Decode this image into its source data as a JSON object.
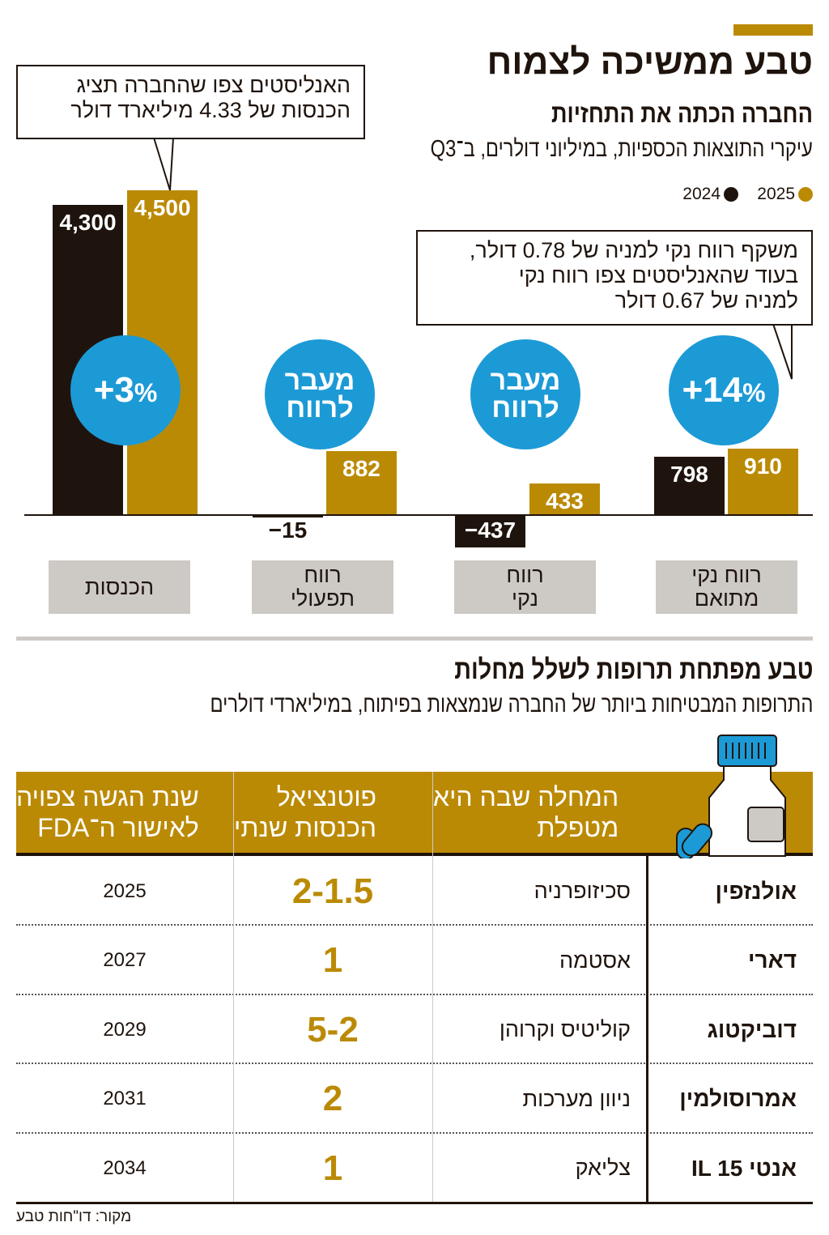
{
  "header": {
    "title": "טבע ממשיכה לצמוח",
    "subtitle": "החברה הכתה את התחזיות",
    "description": "עיקרי התוצאות הכספיות, במיליוני דולרים, ב־Q3"
  },
  "colors": {
    "y2024": "#1f140d",
    "y2025": "#bb8a05",
    "badge": "#1c9ad6",
    "category": "#cdcac5"
  },
  "chart_data": {
    "type": "bar",
    "title": "עיקרי התוצאות הכספיות, במיליוני דולרים, ב־Q3",
    "categories": [
      "הכנסות",
      "רווח תפעולי",
      "רווח נקי",
      "רווח נקי מתואם"
    ],
    "series": [
      {
        "name": "2024",
        "values": [
          4300,
          -15,
          -437,
          798
        ],
        "labels": [
          "4,300",
          "−15",
          "−437",
          "798"
        ]
      },
      {
        "name": "2025",
        "values": [
          4500,
          882,
          433,
          910
        ],
        "labels": [
          "4,500",
          "882",
          "433",
          "910"
        ]
      }
    ],
    "badges": [
      {
        "sign": "+",
        "num": "3",
        "pct": "%"
      },
      {
        "text": "מעבר לרווח"
      },
      {
        "text": "מעבר לרווח"
      },
      {
        "sign": "+",
        "num": "14",
        "pct": "%"
      }
    ],
    "legend": [
      "2025",
      "2024"
    ],
    "annotations": [
      "האנליסטים צפו שהחברה תציג הכנסות של 4.33 מיליארד דולר",
      "משקף רווח נקי למניה של 0.78 דולר, בעוד שהאנליסטים צפו רווח נקי למניה של 0.67 דולר"
    ],
    "ylim": [
      -500,
      4500
    ]
  },
  "category_lines": [
    [
      "הכנסות"
    ],
    [
      "רווח",
      "תפעולי"
    ],
    [
      "רווח",
      "נקי"
    ],
    [
      "רווח נקי",
      "מתואם"
    ]
  ],
  "badge_lines": [
    "מעבר",
    "לרווח"
  ],
  "callouts": {
    "left": [
      "האנליסטים צפו שהחברה תציג",
      "הכנסות של 4.33 מיליארד דולר"
    ],
    "right": [
      "משקף רווח נקי למניה של 0.78 דולר,",
      "בעוד שהאנליסטים צפו רווח נקי",
      "למניה של 0.67 דולר"
    ]
  },
  "section2": {
    "title": "טבע מפתחת תרופות לשלל מחלות",
    "subtitle": "התרופות המבטיחות ביותר של החברה שנמצאות בפיתוח, במיליארדי דולרים"
  },
  "table": {
    "headers": [
      [
        "המחלה שבה היא",
        "מטפלת"
      ],
      [
        "פוטנציאל",
        "הכנסות שנתי"
      ],
      [
        "שנת הגשה צפויה",
        "לאישור ה־FDA"
      ]
    ],
    "rows": [
      {
        "drug": "אולנזפין",
        "disease": "סכיזופרניה",
        "potential": "2-1.5",
        "year": "2025"
      },
      {
        "drug": "דארי",
        "disease": "אסטמה",
        "potential": "1",
        "year": "2027"
      },
      {
        "drug": "דוביקטוג",
        "disease": "קוליטיס וקרוהן",
        "potential": "5-2",
        "year": "2029"
      },
      {
        "drug": "אמרוסולמין",
        "disease": "ניוון מערכות",
        "potential": "2",
        "year": "2031"
      },
      {
        "drug": "אנטי IL 15",
        "disease": "צליאק",
        "potential": "1",
        "year": "2034"
      }
    ]
  },
  "source": "מקור: דו\"חות טבע"
}
